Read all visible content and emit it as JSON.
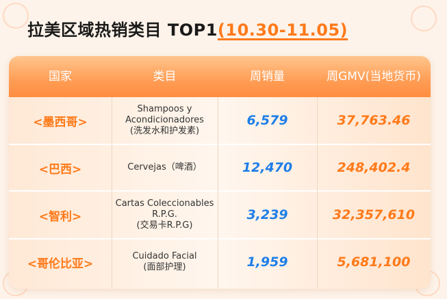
{
  "title": {
    "main": "拉美区域热销类目 TOP1",
    "range": "(10.30-11.05)"
  },
  "table": {
    "headers": [
      "国家",
      "类目",
      "周销量",
      "周GMV(当地货币)"
    ],
    "rows": [
      {
        "country": "<墨西哥>",
        "category": "Shampoos y\nAcondicionadores\n(洗发水和护发素)",
        "sales": "6,579",
        "gmv": "37,763.46"
      },
      {
        "country": "<巴西>",
        "category": "Cervejas（啤酒）",
        "sales": "12,470",
        "gmv": "248,402.4"
      },
      {
        "country": "<智利>",
        "category": "Cartas Coleccionables\nR.P.G.\n(交易卡R.P.G)",
        "sales": "3,239",
        "gmv": "32,357,610"
      },
      {
        "country": "<哥伦比亚>",
        "category": "Cuidado Facial\n(面部护理)",
        "sales": "1,959",
        "gmv": "5,681,100"
      }
    ]
  },
  "colors": {
    "accent": "#ff7a1a",
    "sales_blue": "#1e7ee8",
    "header_orange": "#ff9d55"
  }
}
